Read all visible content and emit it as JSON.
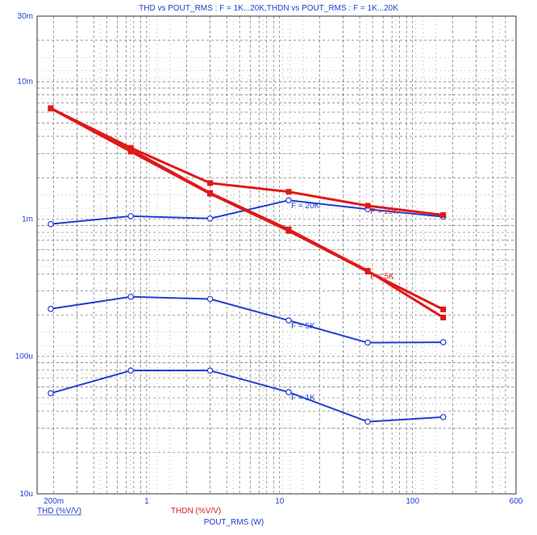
{
  "chart_data": {
    "type": "line",
    "title": "THD vs POUT_RMS : F = 1K...20K,THDN vs POUT_RMS : F = 1K...20K",
    "xlabel": "POUT_RMS (W)",
    "legend": {
      "thd": "THD (%V/V)",
      "thdn": "THDN (%V/V)"
    },
    "x_scale": "log",
    "y_scale": "log",
    "xlim": [
      0.15,
      600
    ],
    "ylim": [
      1e-05,
      0.03
    ],
    "x_ticks": [
      {
        "v": 0.2,
        "label": "200m"
      },
      {
        "v": 1,
        "label": "1"
      },
      {
        "v": 10,
        "label": "10"
      },
      {
        "v": 100,
        "label": "100"
      },
      {
        "v": 600,
        "label": "600"
      }
    ],
    "y_ticks": [
      {
        "v": 1e-05,
        "label": "10u"
      },
      {
        "v": 0.0001,
        "label": "100u"
      },
      {
        "v": 0.001,
        "label": "1m"
      },
      {
        "v": 0.01,
        "label": "10m"
      },
      {
        "v": 0.03,
        "label": "30m"
      }
    ],
    "grid": true,
    "colors": {
      "thd": "#1f3fd0",
      "thdn": "#e01818",
      "grid": "#555555",
      "axis_text": "#1f3fd0"
    },
    "series": [
      {
        "group": "thd",
        "label": "F = 20K",
        "x": [
          0.19,
          0.76,
          3.0,
          11.7,
          46,
          170
        ],
        "y": [
          0.00092,
          0.00105,
          0.00101,
          0.00137,
          0.00118,
          0.00104
        ],
        "label_x": 11.7
      },
      {
        "group": "thd",
        "label": "F = 5K",
        "x": [
          0.19,
          0.76,
          3.0,
          11.7,
          46,
          170
        ],
        "y": [
          0.000222,
          0.000272,
          0.000262,
          0.000183,
          0.000126,
          0.000127
        ],
        "label_x": 11.7
      },
      {
        "group": "thd",
        "label": "F = 1K",
        "x": [
          0.19,
          0.76,
          3.0,
          11.7,
          46,
          170
        ],
        "y": [
          5.4e-05,
          7.9e-05,
          7.9e-05,
          5.5e-05,
          3.35e-05,
          3.62e-05
        ],
        "label_x": 11.7
      },
      {
        "group": "thdn",
        "label": "F = 20K",
        "x": [
          0.19,
          0.76,
          3.0,
          11.7,
          46,
          170
        ],
        "y": [
          0.0064,
          0.0033,
          0.00183,
          0.00158,
          0.00125,
          0.00107
        ],
        "label_x": 46
      },
      {
        "group": "thdn",
        "label": "F = 5K",
        "x": [
          0.19,
          0.76,
          3.0,
          11.7,
          46,
          170
        ],
        "y": [
          0.0064,
          0.0032,
          0.00155,
          0.00084,
          0.00042,
          0.000192
        ],
        "label_x": 46
      },
      {
        "group": "thdn",
        "label": "",
        "x": [
          0.19,
          0.76,
          3.0,
          11.7,
          46,
          170
        ],
        "y": [
          0.0064,
          0.0031,
          0.00153,
          0.00082,
          0.000415,
          0.00022
        ],
        "label_x": 46
      }
    ]
  }
}
